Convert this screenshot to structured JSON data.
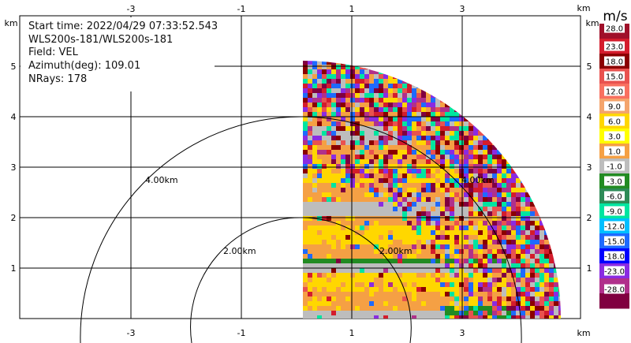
{
  "info": {
    "start_time": "Start time: 2022/04/29 07:33:52.543",
    "instrument": "WLS200s-181/WLS200s-181",
    "field": "Field: VEL",
    "azimuth": "Azimuth(deg): 109.01",
    "nrays": "NRays: 178"
  },
  "axes": {
    "unit_label": "km",
    "x_ticks": [
      "-3",
      "-1",
      "1",
      "3"
    ],
    "y_ticks": [
      "1",
      "2",
      "3",
      "4",
      "5"
    ],
    "range_rings": [
      "2.00km",
      "4.00km",
      "2.00km",
      "4.00km"
    ]
  },
  "colorbar": {
    "unit": "m/s",
    "labels": [
      "28.0",
      "23.0",
      "18.0",
      "15.0",
      "12.0",
      "9.0",
      "6.0",
      "3.0",
      "1.0",
      "-1.0",
      "-3.0",
      "-6.0",
      "-9.0",
      "-12.0",
      "-15.0",
      "-18.0",
      "-23.0",
      "-28.0"
    ],
    "colors": [
      "#a0102a",
      "#d41c2c",
      "#8b0000",
      "#e9524f",
      "#f87060",
      "#f4a46c",
      "#ffd700",
      "#ffff00",
      "#f5a044",
      "#bdbdbd",
      "#228b22",
      "#2e8b57",
      "#00e5a0",
      "#00bfff",
      "#1e6aff",
      "#0000ff",
      "#8a2be2",
      "#b0308b",
      "#800040"
    ]
  }
}
